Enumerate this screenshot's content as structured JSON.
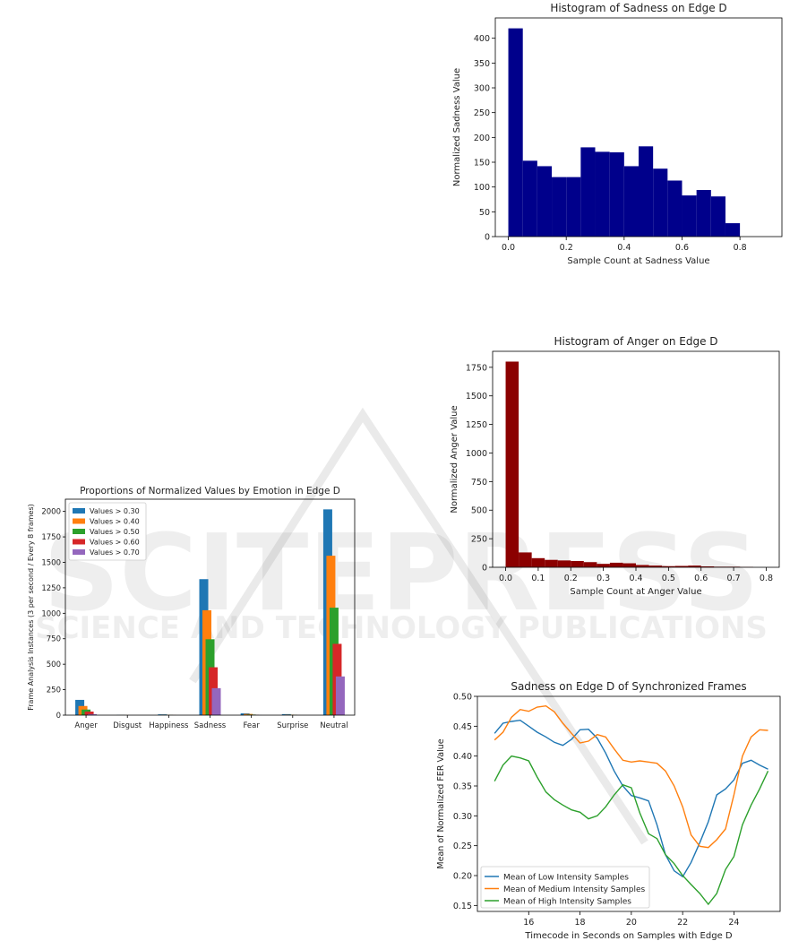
{
  "watermark": {
    "line1": "SCITEPRESS",
    "line2": "SCIENCE AND TECHNOLOGY PUBLICATIONS"
  },
  "chart_data": [
    {
      "id": "sadness_hist",
      "type": "bar",
      "title": "Histogram of Sadness on Edge D",
      "xlabel": "Sample Count at Sadness Value",
      "ylabel": "Normalized Sadness Value",
      "color": "#00008b",
      "xlim": [
        -0.045,
        0.945
      ],
      "ylim": [
        0,
        441
      ],
      "xticks": [
        0.0,
        0.2,
        0.4,
        0.6,
        0.8
      ],
      "yticks": [
        0,
        50,
        100,
        150,
        200,
        250,
        300,
        350,
        400
      ],
      "bin_edges": [
        0.0,
        0.05,
        0.1,
        0.15,
        0.2,
        0.25,
        0.3,
        0.35,
        0.4,
        0.45,
        0.5,
        0.55,
        0.6,
        0.65,
        0.7,
        0.75,
        0.8,
        0.85,
        0.9
      ],
      "counts": [
        420,
        153,
        142,
        120,
        120,
        180,
        171,
        170,
        142,
        182,
        137,
        113,
        83,
        94,
        81,
        27,
        0,
        0
      ]
    },
    {
      "id": "anger_hist",
      "type": "bar",
      "title": "Histogram of Anger on Edge D",
      "xlabel": "Sample Count at Anger Value",
      "ylabel": "Normalized Anger Value",
      "color": "#8b0000",
      "xlim": [
        -0.04,
        0.84
      ],
      "ylim": [
        0,
        1890
      ],
      "xticks": [
        0.0,
        0.1,
        0.2,
        0.3,
        0.4,
        0.5,
        0.6,
        0.7,
        0.8
      ],
      "yticks": [
        0,
        250,
        500,
        750,
        1000,
        1250,
        1500,
        1750
      ],
      "bin_edges": [
        0.0,
        0.04,
        0.08,
        0.12,
        0.16,
        0.2,
        0.24,
        0.28,
        0.32,
        0.36,
        0.4,
        0.44,
        0.48,
        0.52,
        0.56,
        0.6,
        0.64,
        0.68,
        0.72,
        0.76
      ],
      "counts": [
        1800,
        130,
        80,
        65,
        60,
        55,
        45,
        30,
        40,
        35,
        20,
        15,
        10,
        12,
        15,
        8,
        5,
        5,
        3
      ]
    },
    {
      "id": "proportions",
      "type": "bar",
      "title": "Proportions of Normalized Values by Emotion in Edge D",
      "xlabel": "",
      "ylabel": "Frame Analysis Instances (3 per second / Every 8 frames)",
      "ylim": [
        0,
        2120
      ],
      "yticks": [
        0,
        250,
        500,
        750,
        1000,
        1250,
        1500,
        1750,
        2000
      ],
      "categories": [
        "Anger",
        "Disgust",
        "Happiness",
        "Sadness",
        "Fear",
        "Surprise",
        "Neutral"
      ],
      "legend_position": "upper-left",
      "series": [
        {
          "name": "Values > 0.30",
          "color": "#1f77b4",
          "values": [
            150,
            2,
            8,
            1335,
            18,
            10,
            2020
          ]
        },
        {
          "name": "Values > 0.40",
          "color": "#ff7f0e",
          "values": [
            90,
            1,
            4,
            1030,
            12,
            5,
            1565
          ]
        },
        {
          "name": "Values > 0.50",
          "color": "#2ca02c",
          "values": [
            55,
            0,
            2,
            745,
            6,
            3,
            1055
          ]
        },
        {
          "name": "Values > 0.60",
          "color": "#d62728",
          "values": [
            35,
            0,
            1,
            470,
            3,
            1,
            700
          ]
        },
        {
          "name": "Values > 0.70",
          "color": "#9467bd",
          "values": [
            10,
            0,
            0,
            265,
            1,
            0,
            380
          ]
        }
      ]
    },
    {
      "id": "sadness_sync",
      "type": "line",
      "title": "Sadness on Edge D of Synchronized Frames",
      "xlabel": "Timecode in Seconds on Samples with Edge D",
      "ylabel": "Mean of Normalized FER Value",
      "xlim": [
        14.0,
        25.8
      ],
      "ylim": [
        0.14,
        0.5
      ],
      "xticks": [
        16,
        18,
        20,
        22,
        24
      ],
      "yticks": [
        0.15,
        0.2,
        0.25,
        0.3,
        0.35,
        0.4,
        0.45,
        0.5
      ],
      "legend_position": "lower-left",
      "x": [
        14.67,
        15.0,
        15.33,
        15.67,
        16.0,
        16.33,
        16.67,
        17.0,
        17.33,
        17.67,
        18.0,
        18.33,
        18.67,
        19.0,
        19.33,
        19.67,
        20.0,
        20.33,
        20.67,
        21.0,
        21.33,
        21.67,
        22.0,
        22.33,
        22.67,
        23.0,
        23.33,
        23.67,
        24.0,
        24.33,
        24.67,
        25.0,
        25.33
      ],
      "series": [
        {
          "name": "Mean of Low Intensity Samples",
          "color": "#1f77b4",
          "values": [
            0.438,
            0.455,
            0.458,
            0.46,
            0.45,
            0.44,
            0.432,
            0.423,
            0.418,
            0.428,
            0.444,
            0.445,
            0.43,
            0.405,
            0.375,
            0.35,
            0.334,
            0.33,
            0.325,
            0.285,
            0.235,
            0.208,
            0.198,
            0.222,
            0.255,
            0.29,
            0.335,
            0.345,
            0.36,
            0.388,
            0.393,
            0.385,
            0.378
          ]
        },
        {
          "name": "Mean of Medium Intensity Samples",
          "color": "#ff7f0e",
          "values": [
            0.427,
            0.44,
            0.465,
            0.478,
            0.475,
            0.482,
            0.484,
            0.474,
            0.455,
            0.438,
            0.422,
            0.425,
            0.436,
            0.432,
            0.412,
            0.393,
            0.39,
            0.392,
            0.39,
            0.388,
            0.375,
            0.35,
            0.315,
            0.268,
            0.249,
            0.247,
            0.26,
            0.278,
            0.335,
            0.4,
            0.432,
            0.444,
            0.443
          ]
        },
        {
          "name": "Mean of High Intensity Samples",
          "color": "#2ca02c",
          "values": [
            0.358,
            0.385,
            0.4,
            0.397,
            0.392,
            0.365,
            0.34,
            0.327,
            0.318,
            0.31,
            0.306,
            0.295,
            0.3,
            0.315,
            0.335,
            0.352,
            0.347,
            0.305,
            0.27,
            0.262,
            0.235,
            0.22,
            0.2,
            0.185,
            0.17,
            0.152,
            0.17,
            0.21,
            0.232,
            0.285,
            0.318,
            0.345,
            0.375
          ]
        }
      ]
    }
  ]
}
